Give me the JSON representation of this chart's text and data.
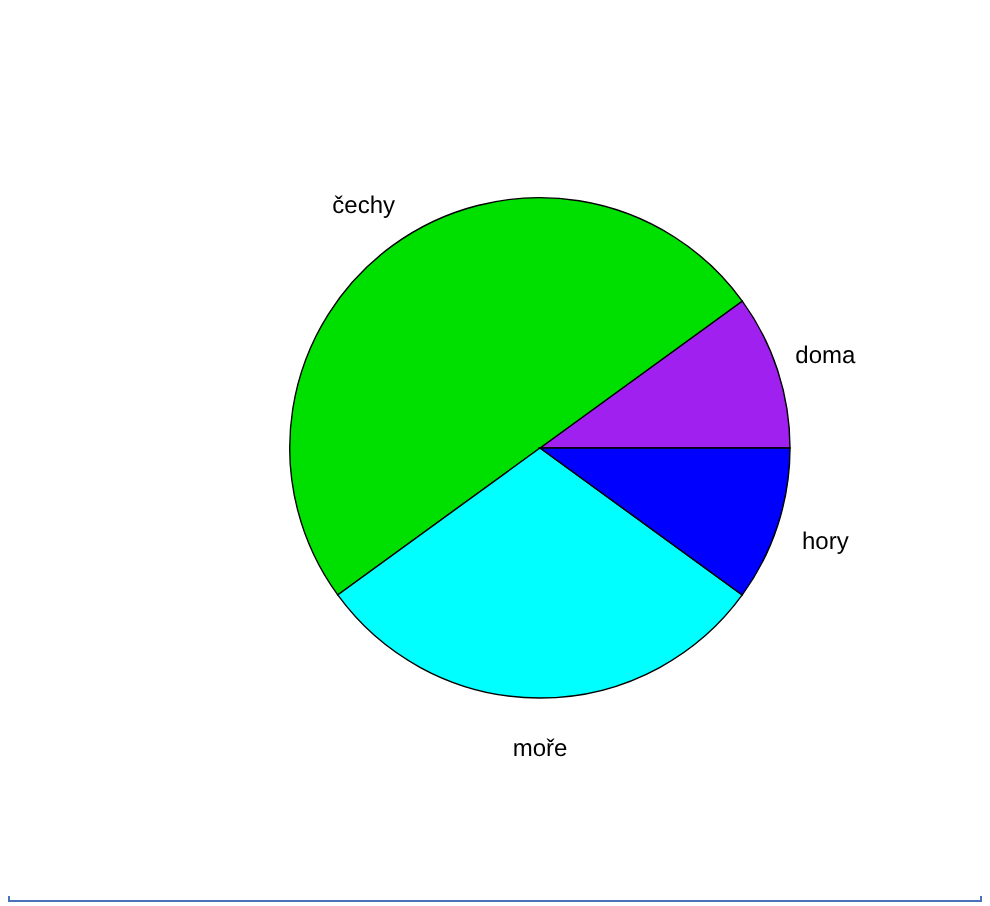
{
  "chart_data": {
    "type": "pie",
    "categories": [
      "doma",
      "čechy",
      "moře",
      "hory"
    ],
    "values": [
      10,
      50,
      30,
      10
    ],
    "colors": [
      "#a020f0",
      "#00e000",
      "#00ffff",
      "#0000ff"
    ]
  }
}
